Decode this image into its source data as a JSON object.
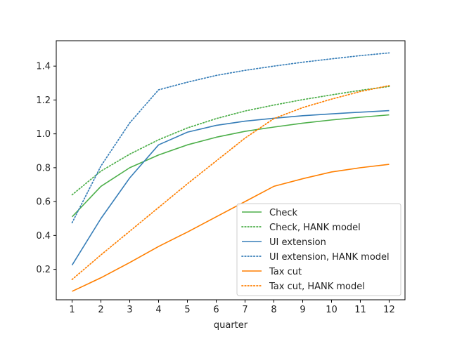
{
  "chart_data": {
    "type": "line",
    "title": "",
    "xlabel": "quarter",
    "ylabel": "",
    "x": [
      1,
      2,
      3,
      4,
      5,
      6,
      7,
      8,
      9,
      10,
      11,
      12
    ],
    "xlim": [
      0.45,
      12.55
    ],
    "ylim": [
      0.02,
      1.55
    ],
    "xticks": [
      1,
      2,
      3,
      4,
      5,
      6,
      7,
      8,
      9,
      10,
      11,
      12
    ],
    "yticks": [
      0.2,
      0.4,
      0.6,
      0.8,
      1.0,
      1.2,
      1.4
    ],
    "ytick_labels": [
      "0.2",
      "0.4",
      "0.6",
      "0.8",
      "1.0",
      "1.2",
      "1.4"
    ],
    "grid": false,
    "legend_position": "bottom-right",
    "series": [
      {
        "name": "Check",
        "color": "#4daf4a",
        "style": "solid",
        "values": [
          0.51,
          0.69,
          0.8,
          0.875,
          0.935,
          0.98,
          1.015,
          1.04,
          1.063,
          1.082,
          1.098,
          1.112
        ]
      },
      {
        "name": "Check, HANK model",
        "color": "#4daf4a",
        "style": "dotted",
        "values": [
          0.64,
          0.78,
          0.88,
          0.965,
          1.035,
          1.09,
          1.135,
          1.17,
          1.202,
          1.23,
          1.257,
          1.28
        ]
      },
      {
        "name": "UI extension",
        "color": "#377eb8",
        "style": "solid",
        "values": [
          0.225,
          0.5,
          0.74,
          0.935,
          1.01,
          1.05,
          1.075,
          1.092,
          1.107,
          1.118,
          1.128,
          1.137
        ]
      },
      {
        "name": "UI extension, HANK model",
        "color": "#377eb8",
        "style": "dotted",
        "values": [
          0.475,
          0.81,
          1.065,
          1.26,
          1.305,
          1.345,
          1.375,
          1.4,
          1.423,
          1.443,
          1.462,
          1.478
        ]
      },
      {
        "name": "Tax cut",
        "color": "#ff7f00",
        "style": "solid",
        "values": [
          0.07,
          0.15,
          0.24,
          0.335,
          0.42,
          0.51,
          0.6,
          0.69,
          0.735,
          0.775,
          0.8,
          0.82
        ]
      },
      {
        "name": "Tax cut, HANK model",
        "color": "#ff7f00",
        "style": "dotted",
        "values": [
          0.14,
          0.285,
          0.425,
          0.565,
          0.705,
          0.84,
          0.975,
          1.09,
          1.155,
          1.205,
          1.25,
          1.285
        ]
      }
    ]
  }
}
